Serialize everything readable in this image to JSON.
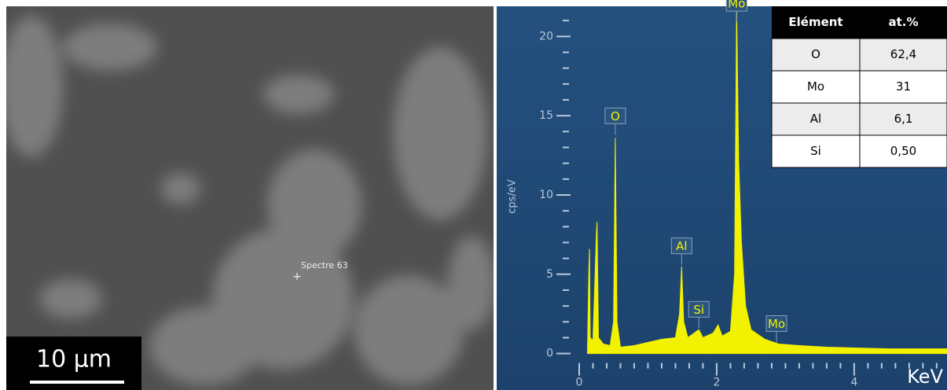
{
  "image": {
    "spot_label": "Spectre 63",
    "scale_bar": "10 µm"
  },
  "chart_data": {
    "type": "area",
    "y_label": "cps/eV",
    "x_label": "KeV",
    "color": "#f2f200",
    "x": [
      0.12,
      0.14,
      0.15,
      0.16,
      0.2,
      0.25,
      0.26,
      0.28,
      0.35,
      0.45,
      0.5,
      0.525,
      0.55,
      0.6,
      0.8,
      1.0,
      1.2,
      1.4,
      1.46,
      1.49,
      1.52,
      1.58,
      1.74,
      1.8,
      1.95,
      2.02,
      2.08,
      2.2,
      2.26,
      2.29,
      2.32,
      2.36,
      2.42,
      2.5,
      2.7,
      2.9,
      3.2,
      3.6,
      4.0,
      4.5,
      5.0,
      5.35
    ],
    "values": [
      0,
      5.2,
      6.6,
      1,
      0.8,
      7.5,
      8.3,
      1,
      0.6,
      0.5,
      2,
      13.6,
      2,
      0.4,
      0.5,
      0.7,
      0.9,
      1.0,
      2.5,
      5.5,
      2,
      1.0,
      1.5,
      1.0,
      1.3,
      1.8,
      1.1,
      1.4,
      5,
      22,
      12,
      7,
      3,
      1.5,
      0.9,
      0.6,
      0.5,
      0.4,
      0.35,
      0.3,
      0.3,
      0.3
    ],
    "xlim": [
      -0.4,
      5.35
    ],
    "ylim": [
      -2.3,
      21.9
    ],
    "xticks": [
      0,
      2,
      4
    ],
    "yticks": [
      0,
      5,
      10,
      15,
      20
    ],
    "xminorticks": [
      0.2,
      0.4,
      0.6,
      0.8,
      1.0,
      1.2,
      1.4,
      1.6,
      1.8,
      2.2,
      2.4,
      2.6,
      2.8,
      3.0,
      3.2,
      3.4,
      3.6,
      3.8,
      4.2,
      4.4,
      4.6,
      4.8,
      5.0,
      5.2
    ],
    "yminorticks": [
      1,
      2,
      3,
      4,
      6,
      7,
      8,
      9,
      11,
      12,
      13,
      14,
      16,
      17,
      18,
      19,
      21
    ],
    "annotations": [
      {
        "text": "Mo",
        "x": 2.29,
        "y": 20.9
      },
      {
        "text": "O",
        "x": 0.525,
        "y": 13.8
      },
      {
        "text": "Al",
        "x": 1.49,
        "y": 5.6
      },
      {
        "text": "Si",
        "x": 1.74,
        "y": 1.6
      },
      {
        "text": "Mo",
        "x": 2.87,
        "y": 0.7
      }
    ]
  },
  "table": {
    "header": [
      "Elément",
      "at.%"
    ],
    "rows": [
      [
        "O",
        "62,4"
      ],
      [
        "Mo",
        "31"
      ],
      [
        "Al",
        "6,1"
      ],
      [
        "Si",
        "0,50"
      ]
    ]
  }
}
